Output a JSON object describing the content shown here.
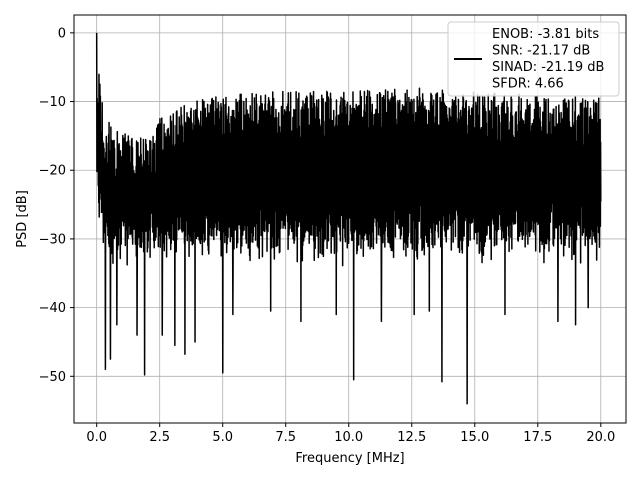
{
  "chart_data": {
    "type": "line",
    "xlabel": "Frequency [MHz]",
    "ylabel": "PSD [dB]",
    "xlim": [
      -0.9,
      21.0
    ],
    "ylim": [
      -56.8,
      2.6
    ],
    "xticks": [
      0.0,
      2.5,
      5.0,
      7.5,
      10.0,
      12.5,
      15.0,
      17.5,
      20.0
    ],
    "xtick_labels": [
      "0.0",
      "2.5",
      "5.0",
      "7.5",
      "10.0",
      "12.5",
      "15.0",
      "17.5",
      "20.0"
    ],
    "yticks": [
      0,
      -10,
      -20,
      -30,
      -40,
      -50
    ],
    "ytick_labels": [
      "0",
      "−10",
      "−20",
      "−30",
      "−40",
      "−50"
    ],
    "grid": true,
    "legend_position": "upper-right",
    "line_color": "#000000",
    "series": [
      {
        "legend_lines": [
          "ENOB: -3.81 bits",
          "SNR: -21.17 dB",
          "SINAD: -21.19 dB",
          "SFDR: 4.66"
        ],
        "x_start": 0.0,
        "x_end": 20.0,
        "envelope_x": [
          0.0,
          0.05,
          0.3,
          1.0,
          2.0,
          2.5,
          4.0,
          5.0,
          7.5,
          10.0,
          12.5,
          15.0,
          17.5,
          20.0
        ],
        "envelope_top": [
          0.0,
          -4.5,
          -12.5,
          -14.5,
          -15.5,
          -12.5,
          -9.5,
          -9.0,
          -8.5,
          -8.5,
          -8.0,
          -8.5,
          -9.0,
          -9.5
        ],
        "envelope_base": [
          -18.0,
          -22.0,
          -28.0,
          -28.5,
          -28.5,
          -28.0,
          -28.0,
          -28.0,
          -28.0,
          -28.0,
          -28.0,
          -28.0,
          -28.0,
          -28.0
        ],
        "notable_points": [
          {
            "x": 0.0,
            "y": 0.0
          },
          {
            "x": 0.35,
            "y": -49.0
          },
          {
            "x": 0.55,
            "y": -47.5
          },
          {
            "x": 1.9,
            "y": -49.8
          },
          {
            "x": 3.5,
            "y": -46.8
          },
          {
            "x": 5.0,
            "y": -49.5
          },
          {
            "x": 10.2,
            "y": -50.5
          },
          {
            "x": 13.7,
            "y": -50.8
          },
          {
            "x": 14.7,
            "y": -54.0
          },
          {
            "x": 0.8,
            "y": -42.5
          },
          {
            "x": 1.6,
            "y": -44.0
          },
          {
            "x": 2.6,
            "y": -44.0
          },
          {
            "x": 3.1,
            "y": -45.5
          },
          {
            "x": 3.9,
            "y": -45.0
          },
          {
            "x": 5.4,
            "y": -41.0
          },
          {
            "x": 6.9,
            "y": -40.5
          },
          {
            "x": 8.1,
            "y": -42.0
          },
          {
            "x": 9.5,
            "y": -41.0
          },
          {
            "x": 11.3,
            "y": -42.0
          },
          {
            "x": 12.6,
            "y": -41.0
          },
          {
            "x": 13.2,
            "y": -40.5
          },
          {
            "x": 16.2,
            "y": -41.0
          },
          {
            "x": 18.3,
            "y": -42.0
          },
          {
            "x": 19.0,
            "y": -42.5
          },
          {
            "x": 19.5,
            "y": -40.0
          }
        ]
      }
    ]
  }
}
